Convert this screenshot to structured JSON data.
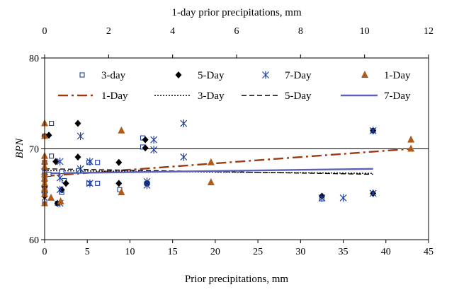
{
  "chart_data": {
    "type": "scatter",
    "xlabel": "Prior precipitations, mm",
    "x2label": "1-day prior precipitations, mm",
    "ylabel": "BPN",
    "xlim": [
      0,
      45
    ],
    "x2lim": [
      0,
      12
    ],
    "ylim": [
      60,
      80
    ],
    "xticks": [
      "0",
      "5",
      "10",
      "15",
      "20",
      "25",
      "30",
      "35",
      "40",
      "45"
    ],
    "x2ticks": [
      "0",
      "2",
      "4",
      "6",
      "8",
      "10",
      "12"
    ],
    "yticks": [
      "60",
      "70",
      "80"
    ],
    "grid": "horizontal at 70",
    "legend_placement": "top",
    "colors": {
      "three_day_marker": "#1f3f9f",
      "five_day_marker": "#000000",
      "seven_day_marker": "#1f3f9f",
      "one_day_marker": "#b05a18",
      "one_day_trend": "#9c3a0c",
      "three_day_trend": "#000000",
      "five_day_trend": "#000000",
      "seven_day_trend": "#5a62b8",
      "grid": "#000000"
    },
    "series": [
      {
        "name": "3-day",
        "kind": "points",
        "marker": "open-square",
        "axis": "bottom",
        "points": [
          [
            0,
            71.4
          ],
          [
            0,
            68.5
          ],
          [
            0,
            67.5
          ],
          [
            0,
            66.8
          ],
          [
            0,
            65.8
          ],
          [
            0,
            65.0
          ],
          [
            0,
            64.2
          ],
          [
            0.5,
            67.2
          ],
          [
            0.8,
            69.2
          ],
          [
            0.8,
            72.8
          ],
          [
            1.5,
            64.0
          ],
          [
            2.0,
            67.5
          ],
          [
            2.0,
            65.2
          ],
          [
            2.3,
            66.5
          ],
          [
            4.0,
            67.6
          ],
          [
            5.2,
            68.5
          ],
          [
            5.2,
            66.2
          ],
          [
            6.2,
            68.5
          ],
          [
            6.2,
            66.2
          ],
          [
            8.8,
            65.5
          ],
          [
            11.5,
            71.2
          ],
          [
            11.5,
            70.2
          ],
          [
            12.0,
            66.2
          ],
          [
            32.5,
            64.5
          ],
          [
            38.5,
            72.0
          ]
        ]
      },
      {
        "name": "5-Day",
        "kind": "points",
        "marker": "filled-diamond",
        "axis": "bottom",
        "points": [
          [
            0,
            71.4
          ],
          [
            0,
            67.8
          ],
          [
            0,
            66.5
          ],
          [
            0,
            65.8
          ],
          [
            0,
            64.8
          ],
          [
            0.5,
            71.5
          ],
          [
            1.3,
            68.6
          ],
          [
            1.5,
            64.0
          ],
          [
            2.0,
            65.5
          ],
          [
            2.5,
            66.2
          ],
          [
            3.9,
            69.1
          ],
          [
            3.9,
            72.8
          ],
          [
            8.7,
            66.2
          ],
          [
            8.7,
            68.5
          ],
          [
            11.8,
            71.0
          ],
          [
            11.8,
            70.1
          ],
          [
            12.0,
            66.2
          ],
          [
            32.5,
            64.8
          ],
          [
            38.5,
            72.0
          ],
          [
            38.5,
            65.1
          ]
        ]
      },
      {
        "name": "7-Day",
        "kind": "points",
        "marker": "asterisk",
        "axis": "bottom",
        "points": [
          [
            0,
            67.5
          ],
          [
            0,
            65.5
          ],
          [
            1.8,
            66.8
          ],
          [
            1.8,
            65.5
          ],
          [
            1.8,
            64.0
          ],
          [
            1.8,
            68.6
          ],
          [
            4.2,
            71.4
          ],
          [
            4.2,
            67.8
          ],
          [
            5.3,
            68.6
          ],
          [
            5.3,
            66.2
          ],
          [
            12.0,
            66.4
          ],
          [
            12.0,
            66.0
          ],
          [
            12.8,
            71.0
          ],
          [
            12.8,
            69.9
          ],
          [
            16.3,
            72.8
          ],
          [
            16.3,
            69.1
          ],
          [
            32.5,
            64.6
          ],
          [
            35.0,
            64.6
          ],
          [
            38.5,
            72.0
          ],
          [
            38.5,
            65.1
          ]
        ]
      },
      {
        "name": "1-Day",
        "kind": "points",
        "marker": "filled-triangle",
        "axis": "top",
        "points": [
          [
            0,
            72.8
          ],
          [
            0,
            71.4
          ],
          [
            0,
            69.2
          ],
          [
            0,
            68.6
          ],
          [
            0,
            68.0
          ],
          [
            0,
            67.2
          ],
          [
            0,
            66.7
          ],
          [
            0,
            66.2
          ],
          [
            0,
            65.6
          ],
          [
            0,
            65.0
          ],
          [
            0,
            64.0
          ],
          [
            0.2,
            64.6
          ],
          [
            0.5,
            64.2
          ],
          [
            2.4,
            72.0
          ],
          [
            2.4,
            65.2
          ],
          [
            5.2,
            68.5
          ],
          [
            5.2,
            66.3
          ],
          [
            11.45,
            71.0
          ],
          [
            11.45,
            70.0
          ]
        ]
      },
      {
        "name": "1-Day",
        "kind": "trendline",
        "dash": "long-dash-dot",
        "axis": "top",
        "points": [
          [
            0,
            67.0
          ],
          [
            11.45,
            70.0
          ]
        ]
      },
      {
        "name": "3-Day",
        "kind": "trendline",
        "dash": "dotted",
        "axis": "bottom",
        "points": [
          [
            0,
            67.6
          ],
          [
            38.5,
            67.3
          ]
        ]
      },
      {
        "name": "5-Day",
        "kind": "trendline",
        "dash": "dashed",
        "axis": "bottom",
        "points": [
          [
            0,
            67.8
          ],
          [
            38.5,
            67.2
          ]
        ]
      },
      {
        "name": "7-Day",
        "kind": "trendline",
        "dash": "solid",
        "axis": "bottom",
        "points": [
          [
            0,
            67.3
          ],
          [
            38.5,
            67.8
          ]
        ]
      }
    ]
  }
}
